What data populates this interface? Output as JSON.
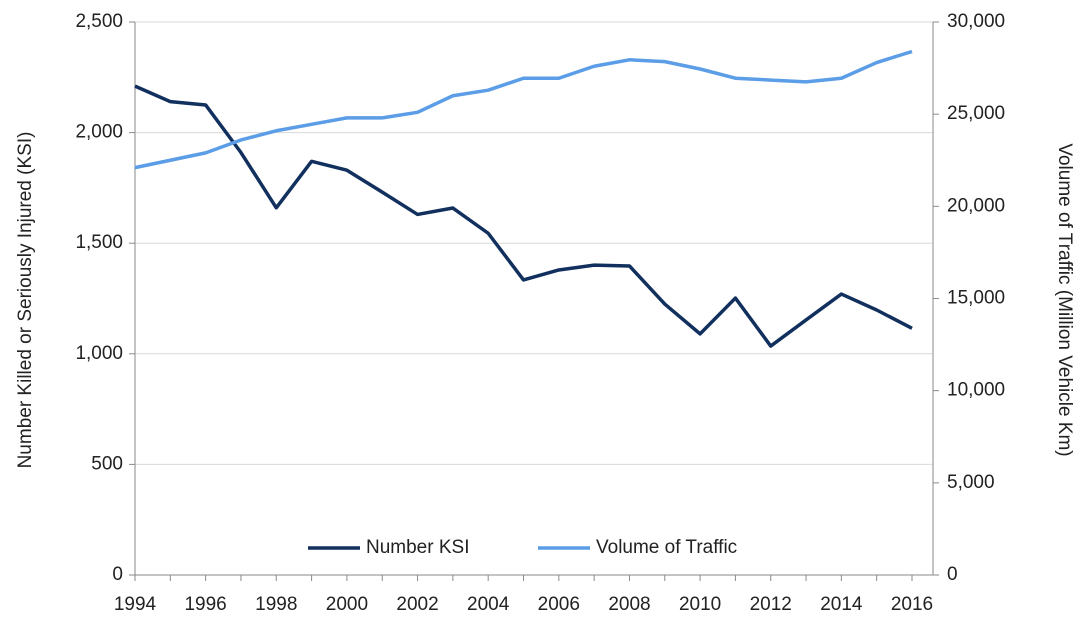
{
  "chart_data": {
    "type": "line",
    "x": [
      1994,
      1995,
      1996,
      1997,
      1998,
      1999,
      2000,
      2001,
      2002,
      2003,
      2004,
      2005,
      2006,
      2007,
      2008,
      2009,
      2010,
      2011,
      2012,
      2013,
      2014,
      2015,
      2016
    ],
    "xlim": [
      1994,
      2016
    ],
    "xticks": [
      1994,
      1996,
      1998,
      2000,
      2002,
      2004,
      2006,
      2008,
      2010,
      2012,
      2014,
      2016
    ],
    "ylabel": "Number Killed or Seriously Injured  (KSI)",
    "y2label": "Volume of Traffic  (Million Vehicle Km)",
    "ylim": [
      0,
      2500
    ],
    "yticks": [
      0,
      {
        "value": 500,
        "label": "500"
      },
      {
        "value": 1000,
        "label": "1,000"
      },
      {
        "value": 1500,
        "label": "1,500"
      },
      {
        "value": 2000,
        "label": "2,000"
      },
      {
        "value": 2500,
        "label": "2,500"
      }
    ],
    "y2lim": [
      0,
      30000
    ],
    "y2ticks": [
      0,
      {
        "value": 5000,
        "label": "5,000"
      },
      {
        "value": 10000,
        "label": "10,000"
      },
      {
        "value": 15000,
        "label": "15,000"
      },
      {
        "value": 20000,
        "label": "20,000"
      },
      {
        "value": 25000,
        "label": "25,000"
      },
      {
        "value": 30000,
        "label": "30,000"
      }
    ],
    "grid": true,
    "legend": "bottom",
    "series": [
      {
        "name": "Number KSI",
        "color": "#12305e",
        "values": [
          2210,
          2140,
          2125,
          1910,
          1660,
          1870,
          1830,
          1731,
          1630,
          1659,
          1545,
          1334,
          1379,
          1401,
          1397,
          1225,
          1090,
          1252,
          1035,
          1153,
          1270,
          1198,
          1115
        ]
      },
      {
        "name": "Volume of Traffic",
        "color": "#5b9de6",
        "axis": "y2",
        "values": [
          22100,
          22500,
          22900,
          23600,
          24100,
          24450,
          24800,
          24800,
          25100,
          26000,
          26300,
          26950,
          26950,
          27600,
          27950,
          27850,
          27450,
          26950,
          26850,
          26750,
          26950,
          27800,
          28400
        ]
      }
    ]
  }
}
